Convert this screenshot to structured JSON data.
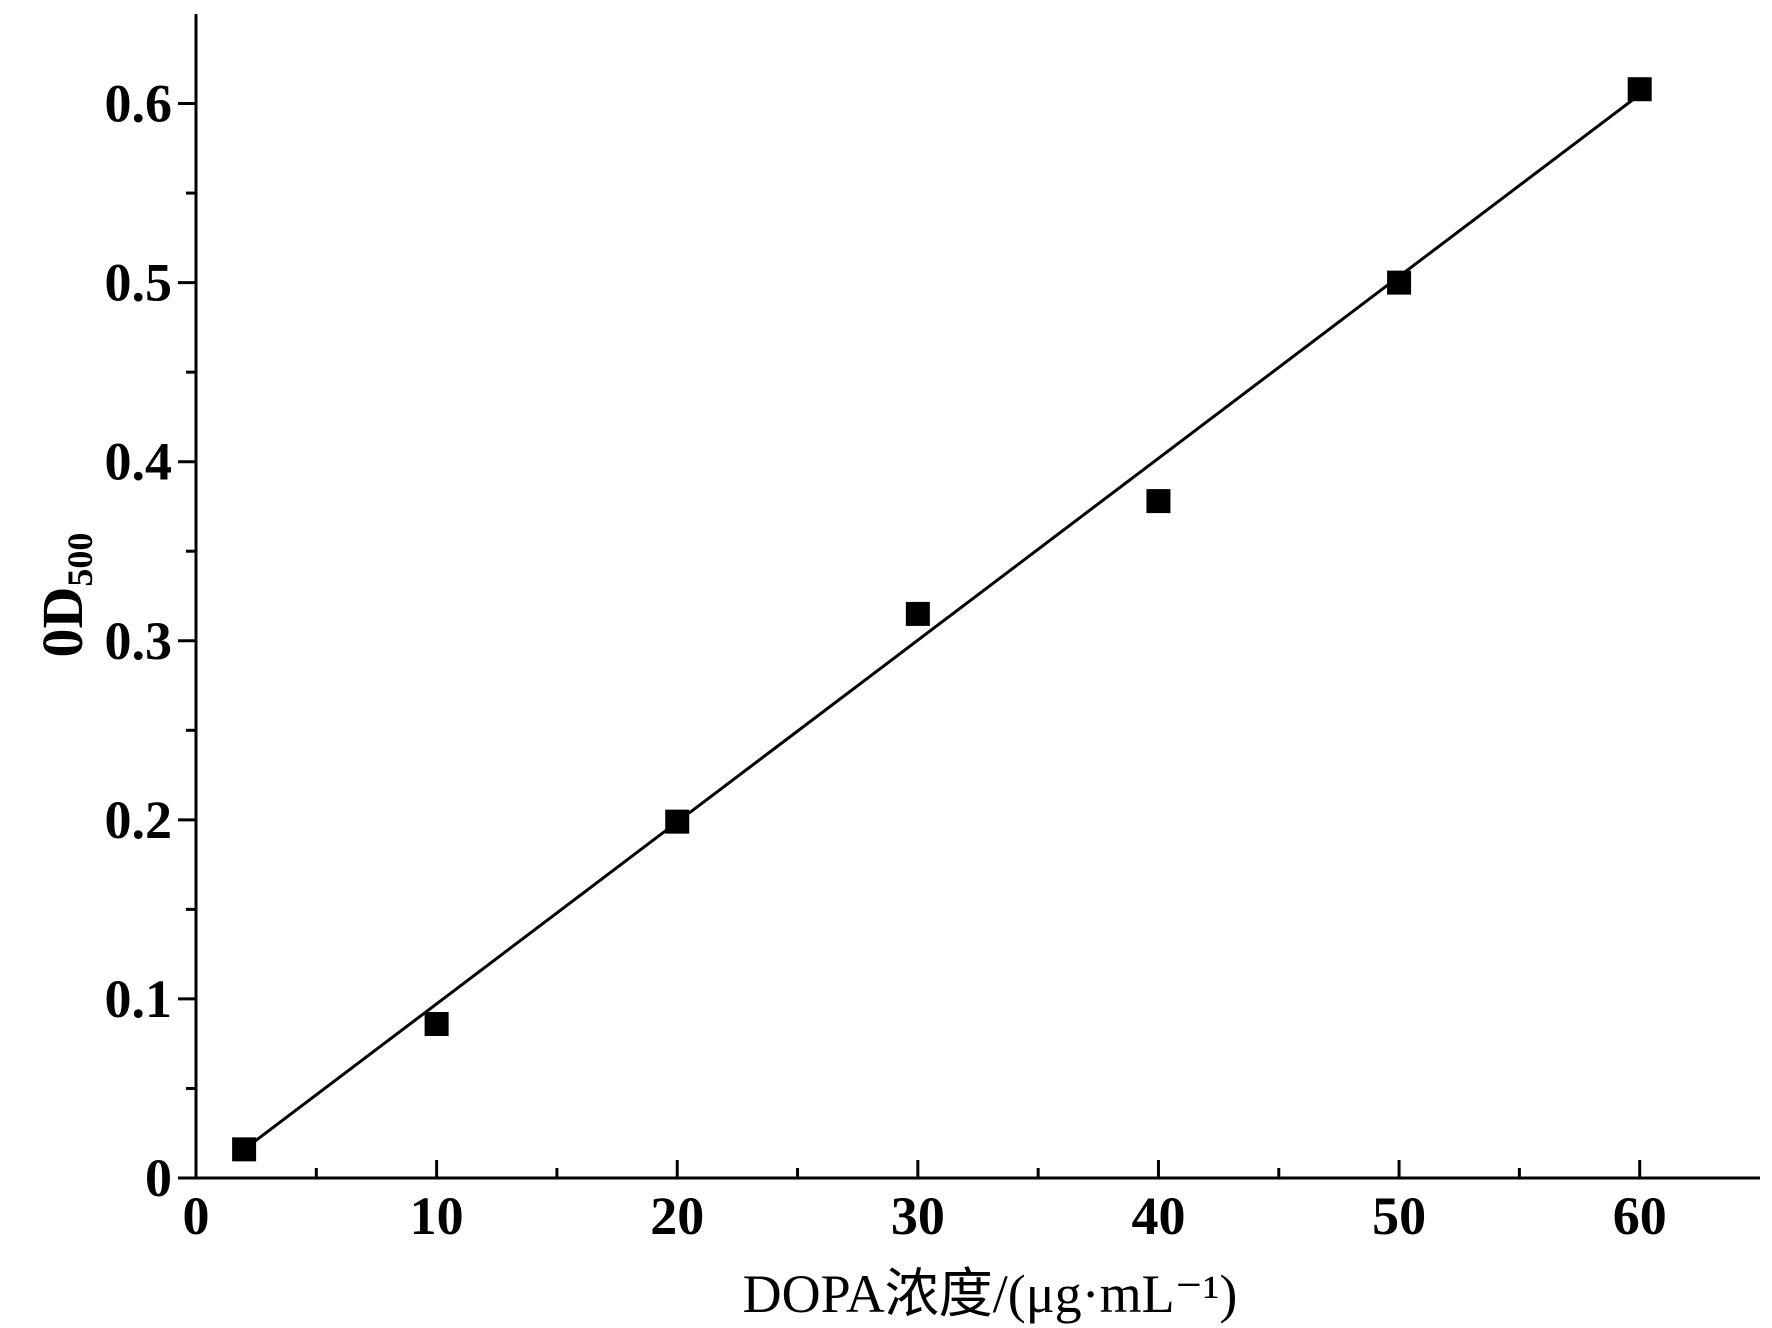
{
  "chart_data": {
    "type": "scatter",
    "title": "",
    "xlabel": "DOPA浓度/(μg·mL⁻¹)",
    "ylabel": "0D",
    "ylabel_subscript": "500",
    "xlim": [
      0,
      65
    ],
    "ylim": [
      0,
      0.65
    ],
    "x_ticks": [
      0,
      10,
      20,
      30,
      40,
      50,
      60
    ],
    "x_tick_labels": [
      "0",
      "10",
      "20",
      "30",
      "40",
      "50",
      "60"
    ],
    "x_minor_ticks": [
      5,
      15,
      25,
      35,
      45,
      55
    ],
    "y_ticks": [
      0,
      0.1,
      0.2,
      0.3,
      0.4,
      0.5,
      0.6
    ],
    "y_tick_labels": [
      "0",
      "0.1",
      "0.2",
      "0.3",
      "0.4",
      "0.5",
      "0.6"
    ],
    "y_minor_ticks": [
      0.05,
      0.15,
      0.25,
      0.35,
      0.45,
      0.55
    ],
    "grid": false,
    "legend": "none",
    "series": [
      {
        "marker": "square",
        "color": "#000000",
        "x": [
          2,
          10,
          20,
          30,
          40,
          50,
          60
        ],
        "y": [
          0.016,
          0.086,
          0.199,
          0.315,
          0.378,
          0.5,
          0.608
        ]
      }
    ],
    "fit_line": {
      "color": "#000000",
      "x": [
        2,
        60
      ],
      "y": [
        0.016,
        0.605
      ]
    }
  }
}
